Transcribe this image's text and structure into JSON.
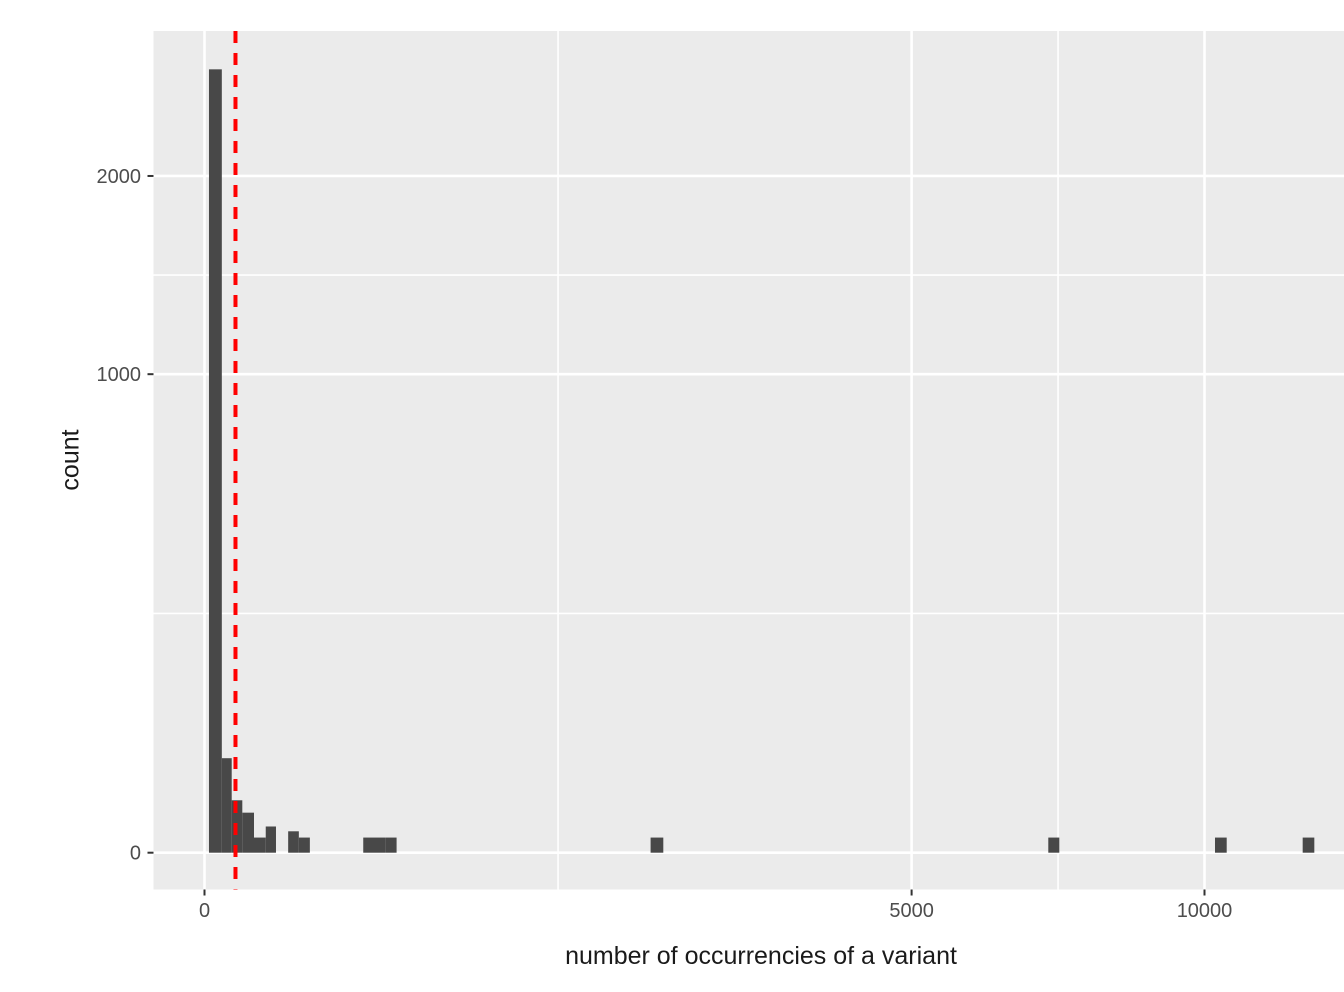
{
  "chart_data": {
    "type": "bar",
    "subtype": "histogram",
    "title": "",
    "x_axis": {
      "label": "number of occurrencies of a variant",
      "scale": "sqrt",
      "major_ticks": [
        0,
        5000,
        10000
      ],
      "tick_labels": [
        "0",
        "5000",
        "10000"
      ],
      "minor_gridlines": [
        1250,
        7286
      ],
      "grid": "on"
    },
    "y_axis": {
      "label": "count",
      "scale": "sqrt",
      "major_ticks": [
        0,
        1000,
        2000
      ],
      "tick_labels": [
        "0",
        "1000",
        "2000"
      ],
      "minor_gridlines": [
        250,
        1457
      ],
      "grid": "on"
    },
    "bins": [
      {
        "from": 0.2,
        "to": 3.0,
        "count": 2680
      },
      {
        "from": 3.0,
        "to": 7.4,
        "count": 39
      },
      {
        "from": 7.4,
        "to": 14.3,
        "count": 12
      },
      {
        "from": 14.3,
        "to": 24.5,
        "count": 7
      },
      {
        "from": 24.5,
        "to": 37.5,
        "count": 1
      },
      {
        "from": 37.5,
        "to": 51.1,
        "count": 3
      },
      {
        "from": 70.0,
        "to": 89.0,
        "count": 2
      },
      {
        "from": 89.0,
        "to": 111.0,
        "count": 1
      },
      {
        "from": 252.0,
        "to": 289.0,
        "count": 1
      },
      {
        "from": 289.0,
        "to": 327.0,
        "count": 1
      },
      {
        "from": 327.0,
        "to": 369.0,
        "count": 1
      },
      {
        "from": 1990.0,
        "to": 2105.0,
        "count": 1
      },
      {
        "from": 7120.0,
        "to": 7307.0,
        "count": 1
      },
      {
        "from": 10211.0,
        "to": 10449.0,
        "count": 1
      },
      {
        "from": 12060.0,
        "to": 12317.0,
        "count": 1
      }
    ],
    "reference_line": {
      "orientation": "vertical",
      "x": 9.6,
      "style": "dashed",
      "color": "#FF0000"
    },
    "colors": {
      "panel_background": "#EBEBEB",
      "gridline": "#FFFFFF",
      "bar_fill": "#484848",
      "tick_mark": "#333333",
      "tick_label": "#4D4D4D",
      "axis_title": "#1A1A1A"
    },
    "legend": "none"
  }
}
